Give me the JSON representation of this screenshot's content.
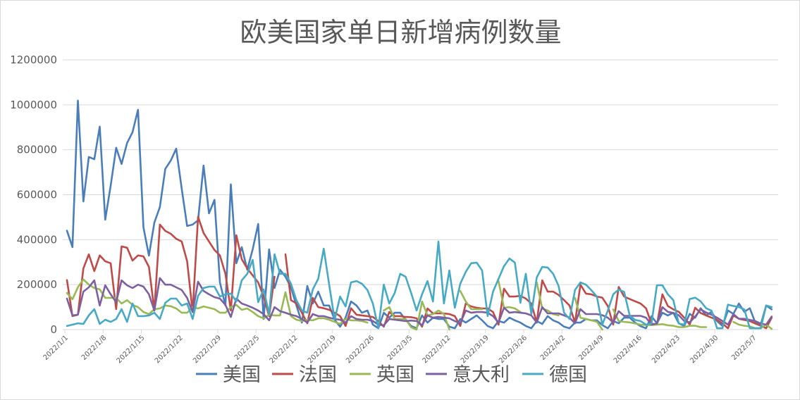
{
  "chart_data": {
    "type": "line",
    "title": "欧美国家单日新增病例数量",
    "xlabel": "",
    "ylabel": "",
    "x_start": "2022/1/1",
    "x_count": 130,
    "x_tick_labels": [
      "2022/1/1",
      "2022/1/8",
      "2022/1/15",
      "2022/1/22",
      "2022/1/29",
      "2022/2/5",
      "2022/2/12",
      "2022/2/19",
      "2022/2/26",
      "2022/3/5",
      "2022/3/12",
      "2022/3/19",
      "2022/3/26",
      "2022/4/2",
      "2022/4/9",
      "2022/4/16",
      "2022/4/23",
      "2022/4/30",
      "2022/5/7"
    ],
    "x_tick_every_days": 7,
    "ylim": [
      0,
      1200000
    ],
    "y_ticks": [
      "0",
      "200000",
      "400000",
      "600000",
      "800000",
      "1000000",
      "1200000"
    ],
    "grid": true,
    "legend_position": "bottom",
    "value_unit_multiplier": 1000,
    "series": [
      {
        "name": "美国",
        "color": "#4a7ebb",
        "values": [
          440,
          367,
          1019,
          570,
          768,
          758,
          903,
          489,
          640,
          809,
          737,
          830,
          878,
          978,
          455,
          329,
          476,
          545,
          715,
          752,
          805,
          627,
          461,
          467,
          486,
          730,
          517,
          577,
          210,
          107,
          646,
          295,
          367,
          266,
          357,
          470,
          47,
          357,
          185,
          266,
          235,
          188,
          107,
          31,
          194,
          116,
          169,
          107,
          107,
          44,
          13,
          53,
          125,
          107,
          75,
          85,
          22,
          6,
          75,
          53,
          75,
          75,
          44,
          16,
          6,
          63,
          31,
          53,
          47,
          47,
          13,
          6,
          47,
          31,
          47,
          63,
          41,
          16,
          6,
          38,
          31,
          53,
          41,
          31,
          16,
          6,
          38,
          25,
          60,
          41,
          31,
          13,
          6,
          31,
          31,
          47,
          41,
          41,
          20,
          6,
          38,
          28,
          53,
          53,
          31,
          15,
          6,
          60,
          28,
          75,
          63,
          75,
          28,
          16,
          70,
          53,
          95,
          63,
          79,
          38,
          16,
          85,
          70,
          116,
          79,
          95,
          31,
          22,
          107,
          90
        ]
      },
      {
        "name": "法国",
        "color": "#be4b48",
        "values": [
          220,
          60,
          66,
          272,
          335,
          260,
          330,
          304,
          295,
          91,
          370,
          364,
          307,
          330,
          326,
          279,
          85,
          467,
          439,
          426,
          404,
          392,
          304,
          78,
          502,
          430,
          392,
          354,
          330,
          248,
          85,
          420,
          313,
          272,
          241,
          210,
          147,
          60,
          235,
          null,
          335,
          131,
          117,
          75,
          28,
          141,
          100,
          95,
          88,
          75,
          60,
          16,
          95,
          66,
          63,
          60,
          56,
          38,
          13,
          78,
          60,
          60,
          56,
          55,
          50,
          13,
          94,
          72,
          72,
          72,
          69,
          60,
          16,
          116,
          103,
          97,
          94,
          94,
          78,
          22,
          182,
          147,
          147,
          150,
          138,
          116,
          31,
          219,
          169,
          169,
          154,
          131,
          107,
          31,
          200,
          160,
          157,
          147,
          142,
          105,
          22,
          190,
          147,
          136,
          126,
          116,
          95,
          27,
          22,
          157,
          105,
          90,
          79,
          53,
          22,
          97,
          74,
          63,
          53,
          43,
          27,
          6,
          63,
          48,
          43,
          38,
          27,
          17,
          6,
          53
        ]
      },
      {
        "name": "英国",
        "color": "#98b954",
        "values": [
          163,
          135,
          188,
          223,
          200,
          185,
          179,
          141,
          141,
          141,
          116,
          131,
          110,
          100,
          78,
          69,
          91,
          94,
          107,
          104,
          94,
          75,
          75,
          100,
          94,
          103,
          97,
          91,
          75,
          75,
          100,
          110,
          88,
          94,
          78,
          60,
          50,
          66,
          63,
          63,
          166,
          60,
          44,
          38,
          44,
          41,
          50,
          50,
          44,
          34,
          25,
          47,
          41,
          41,
          38,
          31,
          null,
          null,
          85,
          100,
          47,
          47,
          47,
          10,
          0,
          125,
          63,
          69,
          85,
          69,
          0,
          null,
          172,
          125,
          91,
          91,
          91,
          null,
          null,
          216,
          97,
          100,
          94,
          78,
          null,
          null,
          210,
          94,
          85,
          69,
          63,
          null,
          null,
          141,
          53,
          47,
          41,
          35,
          0,
          null,
          90,
          38,
          34,
          32,
          27,
          22,
          20,
          20,
          22,
          24,
          19,
          17,
          11,
          11,
          17,
          17,
          11,
          11,
          null,
          null,
          null,
          null,
          34,
          22,
          17,
          14,
          6,
          6,
          22,
          3
        ]
      },
      {
        "name": "意大利",
        "color": "#7d60a0",
        "values": [
          138,
          63,
          66,
          169,
          188,
          219,
          107,
          197,
          157,
          122,
          219,
          197,
          185,
          200,
          191,
          157,
          85,
          229,
          200,
          200,
          188,
          176,
          141,
          78,
          213,
          172,
          157,
          144,
          138,
          110,
          56,
          138,
          116,
          107,
          97,
          85,
          69,
          41,
          100,
          82,
          75,
          66,
          60,
          47,
          31,
          69,
          60,
          60,
          53,
          47,
          44,
          31,
          60,
          47,
          44,
          44,
          38,
          22,
          19,
          47,
          44,
          41,
          38,
          40,
          38,
          19,
          63,
          53,
          56,
          53,
          50,
          38,
          28,
          85,
          75,
          78,
          78,
          75,
          60,
          31,
          97,
          75,
          78,
          75,
          72,
          63,
          31,
          100,
          72,
          72,
          72,
          63,
          53,
          28,
          91,
          69,
          69,
          69,
          64,
          53,
          32,
          82,
          61,
          61,
          61,
          61,
          53,
          22,
          27,
          100,
          79,
          74,
          64,
          38,
          32,
          58,
          90,
          76,
          66,
          53,
          38,
          22,
          69,
          48,
          48,
          43,
          38,
          27,
          22,
          58
        ]
      },
      {
        "name": "德国",
        "color": "#46aac5",
        "values": [
          16,
          22,
          28,
          25,
          63,
          91,
          25,
          44,
          34,
          47,
          91,
          34,
          116,
          60,
          60,
          63,
          75,
          47,
          119,
          138,
          138,
          107,
          116,
          47,
          150,
          185,
          191,
          191,
          147,
          157,
          160,
          125,
          219,
          248,
          310,
          122,
          179,
          69,
          335,
          248,
          248,
          204,
          131,
          85,
          75,
          179,
          226,
          360,
          200,
          44,
          147,
          103,
          210,
          216,
          204,
          176,
          116,
          6,
          200,
          116,
          163,
          248,
          235,
          163,
          85,
          157,
          216,
          125,
          392,
          116,
          263,
          97,
          204,
          257,
          295,
          298,
          263,
          60,
          169,
          226,
          282,
          316,
          298,
          119,
          248,
          69,
          232,
          279,
          276,
          248,
          194,
          75,
          47,
          176,
          210,
          200,
          175,
          147,
          22,
          84,
          157,
          178,
          168,
          64,
          43,
          38,
          22,
          27,
          197,
          197,
          157,
          131,
          27,
          22,
          136,
          142,
          126,
          95,
          84,
          6,
          6,
          111,
          105,
          100,
          90,
          6,
          6,
          6,
          107,
          100
        ]
      }
    ]
  }
}
